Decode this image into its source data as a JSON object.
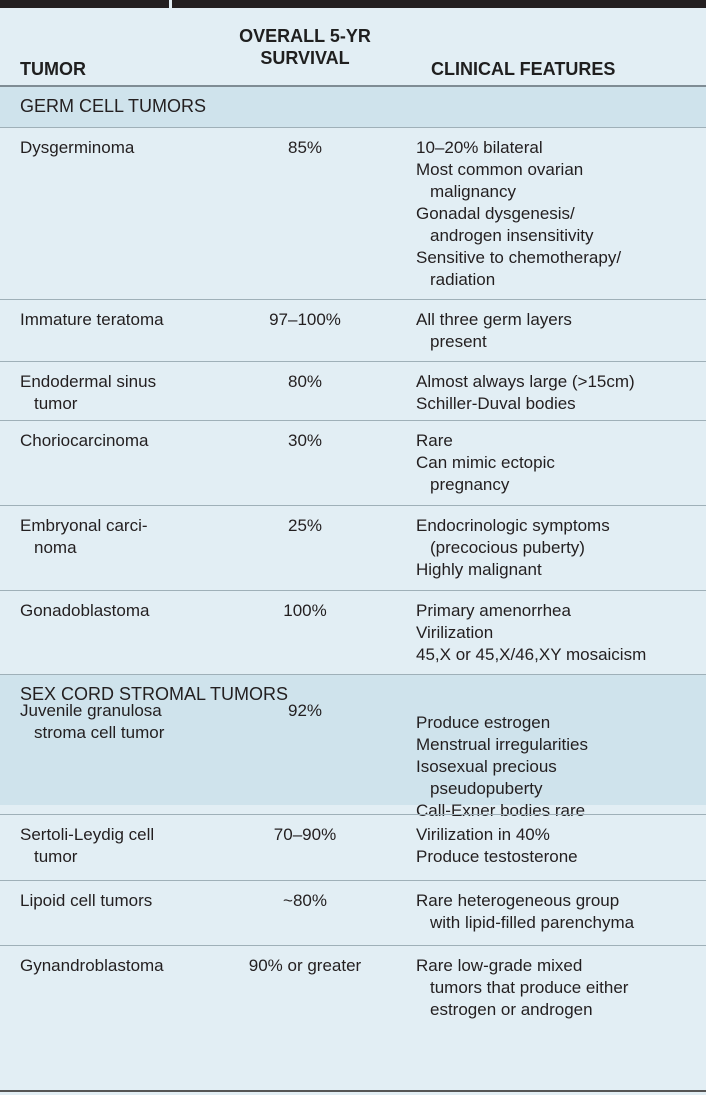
{
  "header": {
    "tumor": "TUMOR",
    "survival_line1": "OVERALL 5-YR",
    "survival_line2": "SURVIVAL",
    "clinical": "CLINICAL FEATURES"
  },
  "sections": {
    "germ": "GERM CELL TUMORS",
    "sex_cord": "SEX CORD STROMAL TUMORS"
  },
  "rows": [
    {
      "tumor": [
        "Dysgerminoma"
      ],
      "survival": "85%",
      "features": [
        "10–20% bilateral",
        "Most common ovarian",
        "malignancy",
        "Gonadal dysgenesis/",
        "androgen insensitivity",
        "Sensitive to chemotherapy/",
        "radiation"
      ]
    },
    {
      "tumor": [
        "Immature teratoma"
      ],
      "survival": "97–100%",
      "features": [
        "All three germ layers",
        "present"
      ]
    },
    {
      "tumor": [
        "Endodermal sinus",
        "tumor"
      ],
      "survival": "80%",
      "features": [
        "Almost always large (>15cm)",
        "Schiller-Duval bodies"
      ]
    },
    {
      "tumor": [
        "Choriocarcinoma"
      ],
      "survival": "30%",
      "features": [
        "Rare",
        "Can mimic ectopic",
        "pregnancy"
      ]
    },
    {
      "tumor": [
        "Embryonal carci-",
        "noma"
      ],
      "survival": "25%",
      "features": [
        "Endocrinologic symptoms",
        "(precocious puberty)",
        "Highly malignant"
      ]
    },
    {
      "tumor": [
        "Gonadoblastoma"
      ],
      "survival": "100%",
      "features": [
        "Primary amenorrhea",
        "Virilization",
        "45,X or 45,X/46,XY mosaicism"
      ]
    },
    {
      "tumor": [
        "Juvenile granulosa",
        "stroma cell tumor"
      ],
      "survival": "92%",
      "features": [
        "Produce estrogen",
        "Menstrual irregularities",
        "Isosexual precious",
        "pseudopuberty",
        "Call-Exner bodies rare"
      ]
    },
    {
      "tumor": [
        "Sertoli-Leydig cell",
        "tumor"
      ],
      "survival": "70–90%",
      "features": [
        "Virilization in 40%",
        "Produce testosterone"
      ]
    },
    {
      "tumor": [
        "Lipoid cell tumors"
      ],
      "survival": "~80%",
      "features": [
        "Rare heterogeneous group",
        "with lipid-filled parenchyma"
      ]
    },
    {
      "tumor": [
        "Gynandroblastoma"
      ],
      "survival": "90% or greater",
      "features": [
        "Rare low-grade mixed",
        "tumors that produce either",
        "estrogen or androgen"
      ]
    }
  ],
  "colors": {
    "background": "#e2eef4",
    "section_band": "#cfe3ec",
    "text": "#231f20"
  }
}
